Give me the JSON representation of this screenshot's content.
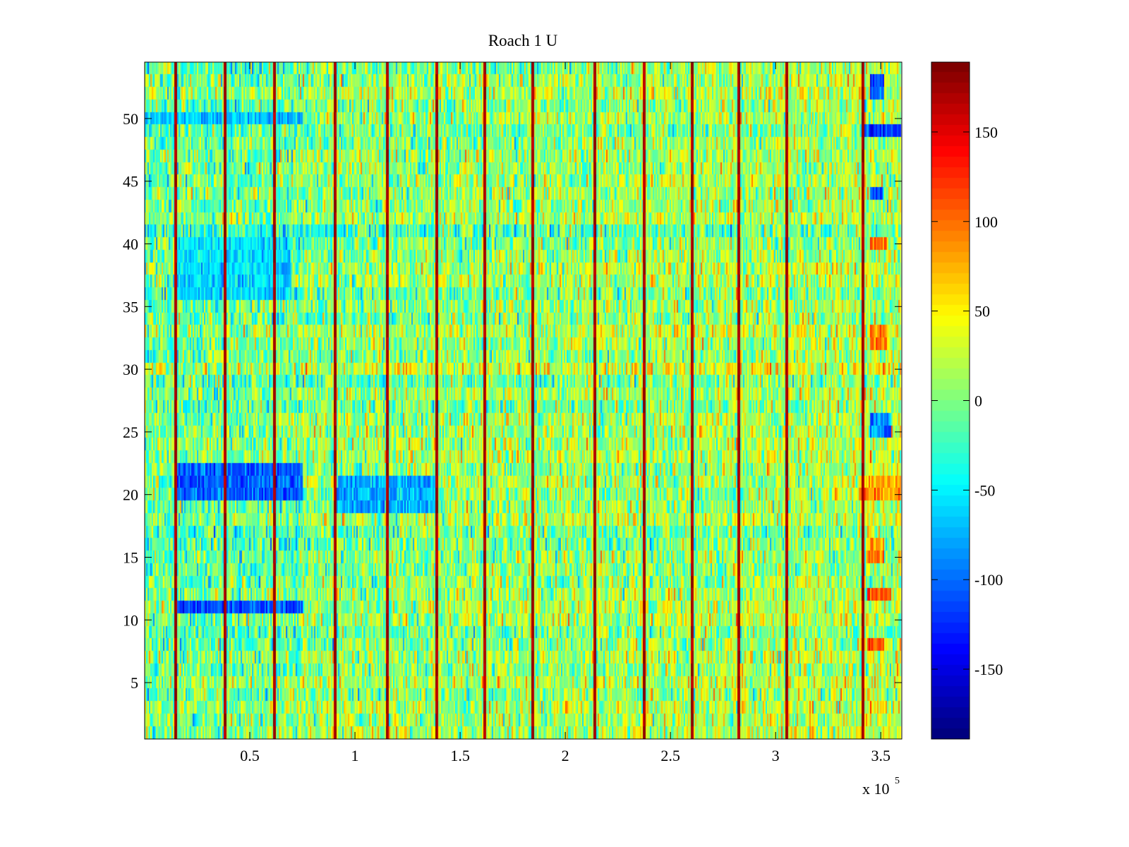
{
  "chart_data": {
    "type": "heatmap",
    "title": "Roach 1 U",
    "xlabel": "",
    "ylabel": "",
    "x_exponent_label": "x 10",
    "x_exponent": "5",
    "xlim": [
      0,
      360000
    ],
    "ylim": [
      0.5,
      54.5
    ],
    "rows": 54,
    "xticks": [
      0.5,
      1,
      1.5,
      2,
      2.5,
      3,
      3.5
    ],
    "xtick_labels": [
      "0.5",
      "1",
      "1.5",
      "2",
      "2.5",
      "3",
      "3.5"
    ],
    "yticks": [
      5,
      10,
      15,
      20,
      25,
      30,
      35,
      40,
      45,
      50
    ],
    "ytick_labels": [
      "5",
      "10",
      "15",
      "20",
      "25",
      "30",
      "35",
      "40",
      "45",
      "50"
    ],
    "colormap": "jet",
    "clim": [
      -189,
      189
    ],
    "colorbar": {
      "ticks": [
        150,
        100,
        50,
        0,
        -50,
        -100,
        -150
      ],
      "tick_labels": [
        "150",
        "100",
        "50",
        "0",
        "-50",
        "-100",
        "-150"
      ],
      "location": "right"
    },
    "background_value_mean": 0,
    "background_value_spread": 35,
    "vertical_spike_x": [
      14800,
      38300,
      61700,
      90900,
      115400,
      138900,
      161700,
      184600,
      214100,
      237600,
      260400,
      282900,
      305400,
      342000
    ],
    "vertical_spike_value": 160,
    "bands": [
      {
        "rows": [
          21,
          21
        ],
        "x": [
          15000,
          75000
        ],
        "value": -150
      },
      {
        "rows": [
          20,
          22
        ],
        "x": [
          15000,
          75000
        ],
        "value": -105
      },
      {
        "rows": [
          11,
          11
        ],
        "x": [
          15000,
          75000
        ],
        "value": -115
      },
      {
        "rows": [
          19,
          21
        ],
        "x": [
          90000,
          140000
        ],
        "value": -75
      },
      {
        "rows": [
          36,
          40
        ],
        "x": [
          15000,
          70000
        ],
        "value": -60
      },
      {
        "rows": [
          50,
          50
        ],
        "x": [
          0,
          75000
        ],
        "value": -70
      },
      {
        "rows": [
          52,
          53
        ],
        "x": [
          345000,
          352000
        ],
        "value": -110
      },
      {
        "rows": [
          49,
          49
        ],
        "x": [
          342000,
          360000
        ],
        "value": -120
      },
      {
        "rows": [
          44,
          44
        ],
        "x": [
          345000,
          352000
        ],
        "value": -100
      },
      {
        "rows": [
          25,
          26
        ],
        "x": [
          345000,
          355000
        ],
        "value": -95
      },
      {
        "rows": [
          40,
          40
        ],
        "x": [
          345000,
          353000
        ],
        "value": 120
      },
      {
        "rows": [
          32,
          33
        ],
        "x": [
          345000,
          353000
        ],
        "value": 95
      },
      {
        "rows": [
          20,
          21
        ],
        "x": [
          340000,
          360000
        ],
        "value": 85
      },
      {
        "rows": [
          12,
          12
        ],
        "x": [
          344000,
          355000
        ],
        "value": 115
      },
      {
        "rows": [
          8,
          8
        ],
        "x": [
          344000,
          352000
        ],
        "value": 115
      },
      {
        "rows": [
          15,
          16
        ],
        "x": [
          344000,
          352000
        ],
        "value": 90
      }
    ]
  }
}
